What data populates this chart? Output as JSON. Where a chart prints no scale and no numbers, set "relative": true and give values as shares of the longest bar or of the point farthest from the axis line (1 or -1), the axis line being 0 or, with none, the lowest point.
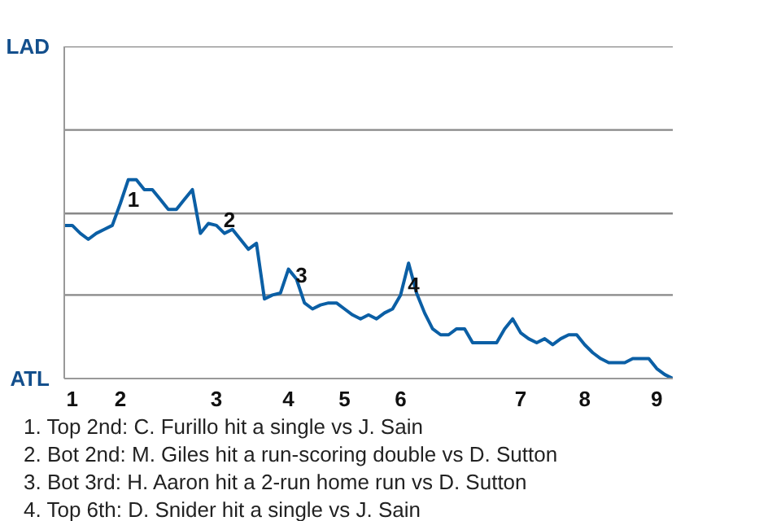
{
  "chart_data": {
    "type": "line",
    "line_style": "solid",
    "marker": "none",
    "relative": true,
    "categories": [
      null,
      "1",
      null,
      null,
      null,
      null,
      null,
      "2",
      null,
      null,
      null,
      null,
      null,
      null,
      null,
      null,
      null,
      null,
      null,
      "3",
      null,
      null,
      null,
      null,
      null,
      null,
      null,
      null,
      "4",
      null,
      null,
      null,
      null,
      null,
      null,
      "5",
      null,
      null,
      null,
      null,
      null,
      null,
      "6",
      null,
      null,
      null,
      null,
      null,
      null,
      null,
      null,
      null,
      null,
      null,
      null,
      null,
      null,
      "7",
      null,
      null,
      null,
      null,
      null,
      null,
      null,
      "8",
      null,
      null,
      null,
      null,
      null,
      null,
      null,
      null,
      "9",
      null,
      null
    ],
    "series": [
      {
        "color": "#0b5fa5",
        "values": [
          0.77,
          0.77,
          0.73,
          0.7,
          0.73,
          0.75,
          0.77,
          0.88,
          1,
          1,
          0.95,
          0.95,
          0.9,
          0.85,
          0.85,
          0.9,
          0.95,
          0.73,
          0.78,
          0.77,
          0.73,
          0.75,
          0.7,
          0.65,
          0.68,
          0.4,
          0.42,
          0.43,
          0.55,
          0.5,
          0.38,
          0.35,
          0.37,
          0.38,
          0.38,
          0.35,
          0.32,
          0.3,
          0.32,
          0.3,
          0.33,
          0.35,
          0.42,
          0.58,
          0.43,
          0.33,
          0.25,
          0.22,
          0.22,
          0.25,
          0.25,
          0.18,
          0.18,
          0.18,
          0.18,
          0.25,
          0.3,
          0.23,
          0.2,
          0.18,
          0.2,
          0.17,
          0.2,
          0.22,
          0.22,
          0.17,
          0.13,
          0.1,
          0.08,
          0.08,
          0.08,
          0.1,
          0.1,
          0.1,
          0.05,
          0.02,
          0
        ]
      }
    ],
    "ref_lines": [
      {
        "axis": "y",
        "value": 0.42,
        "color": "#888888"
      },
      {
        "axis": "y",
        "value": 0.83,
        "color": "#888888"
      },
      {
        "axis": "y",
        "value": 1.25,
        "color": "#888888"
      },
      {
        "axis": "y",
        "value": 1.67,
        "color": "#888888"
      }
    ],
    "annotations": [
      "LAD",
      "ATL",
      {
        "text": "1",
        "x": "2",
        "y": 0.9
      },
      {
        "text": "2",
        "x": "3",
        "y": 0.8
      },
      {
        "text": "3",
        "x": "4",
        "y": 0.52
      },
      {
        "text": "4",
        "x": "6",
        "y": 0.47
      },
      "1. Top 2nd: C. Furillo hit a single vs J. Sain",
      "2. Bot 2nd: M. Giles hit a run-scoring double vs D. Sutton",
      "3. Bot 3rd: H. Aaron hit a 2-run home run vs D. Sutton",
      "4. Top 6th: D. Snider hit a single vs J. Sain"
    ]
  }
}
